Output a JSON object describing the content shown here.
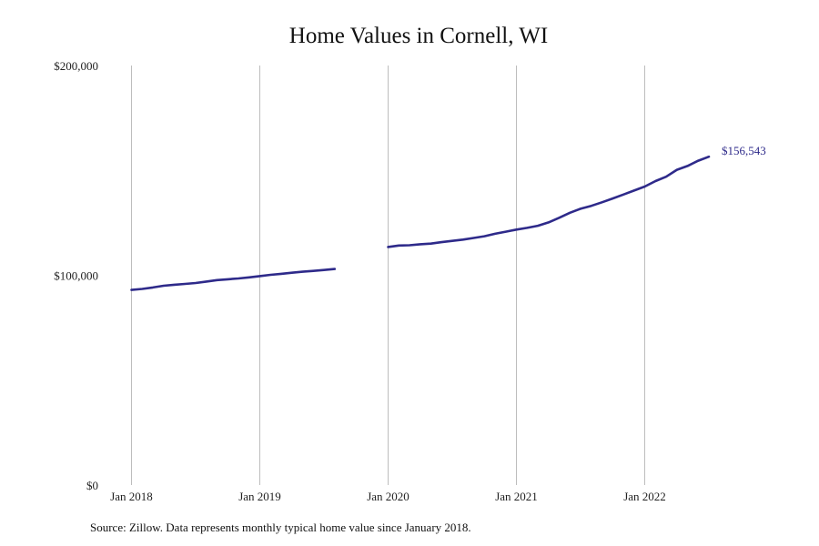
{
  "chart_data": {
    "type": "line",
    "title": "Home Values in Cornell, WI",
    "source_note": "Source: Zillow. Data represents monthly typical home value since January 2018.",
    "xlabel": "",
    "ylabel": "",
    "ylim": [
      0,
      200000
    ],
    "xlim": [
      "2018-01",
      "2022-12"
    ],
    "y_ticks": [
      {
        "value": 0,
        "label": "$0"
      },
      {
        "value": 100000,
        "label": "$100,000"
      },
      {
        "value": 200000,
        "label": "$200,000"
      }
    ],
    "x_ticks": [
      {
        "value": "2018-01",
        "label": "Jan 2018"
      },
      {
        "value": "2019-01",
        "label": "Jan 2019"
      },
      {
        "value": "2020-01",
        "label": "Jan 2020"
      },
      {
        "value": "2021-01",
        "label": "Jan 2021"
      },
      {
        "value": "2022-01",
        "label": "Jan 2022"
      }
    ],
    "grid": "vertical",
    "line_color": "#2e2a8a",
    "end_label": "$156,543",
    "series": [
      {
        "segments": [
          [
            [
              "2018-01",
              93000
            ],
            [
              "2018-02",
              93500
            ],
            [
              "2018-03",
              94200
            ],
            [
              "2018-04",
              95000
            ],
            [
              "2018-05",
              95500
            ],
            [
              "2018-06",
              95900
            ],
            [
              "2018-07",
              96300
            ],
            [
              "2018-08",
              97000
            ],
            [
              "2018-09",
              97700
            ],
            [
              "2018-10",
              98100
            ],
            [
              "2018-11",
              98500
            ],
            [
              "2018-12",
              99000
            ],
            [
              "2019-01",
              99600
            ],
            [
              "2019-02",
              100200
            ],
            [
              "2019-03",
              100700
            ],
            [
              "2019-04",
              101200
            ],
            [
              "2019-05",
              101700
            ],
            [
              "2019-06",
              102100
            ],
            [
              "2019-07",
              102500
            ],
            [
              "2019-08",
              103000
            ]
          ],
          [
            [
              "2020-01",
              113500
            ],
            [
              "2020-02",
              114200
            ],
            [
              "2020-03",
              114300
            ],
            [
              "2020-04",
              114800
            ],
            [
              "2020-05",
              115100
            ],
            [
              "2020-06",
              115800
            ],
            [
              "2020-07",
              116400
            ],
            [
              "2020-08",
              117000
            ],
            [
              "2020-09",
              117800
            ],
            [
              "2020-10",
              118600
            ],
            [
              "2020-11",
              119800
            ],
            [
              "2020-12",
              120800
            ],
            [
              "2021-01",
              121800
            ],
            [
              "2021-02",
              122600
            ],
            [
              "2021-03",
              123600
            ],
            [
              "2021-04",
              125200
            ],
            [
              "2021-05",
              127400
            ],
            [
              "2021-06",
              129800
            ],
            [
              "2021-07",
              131700
            ],
            [
              "2021-08",
              133100
            ],
            [
              "2021-09",
              134800
            ],
            [
              "2021-10",
              136600
            ],
            [
              "2021-11",
              138500
            ],
            [
              "2021-12",
              140400
            ],
            [
              "2022-01",
              142300
            ],
            [
              "2022-02",
              144900
            ],
            [
              "2022-03",
              147000
            ],
            [
              "2022-04",
              150300
            ],
            [
              "2022-05",
              152100
            ],
            [
              "2022-06",
              154600
            ],
            [
              "2022-07",
              156543
            ]
          ]
        ]
      }
    ]
  }
}
